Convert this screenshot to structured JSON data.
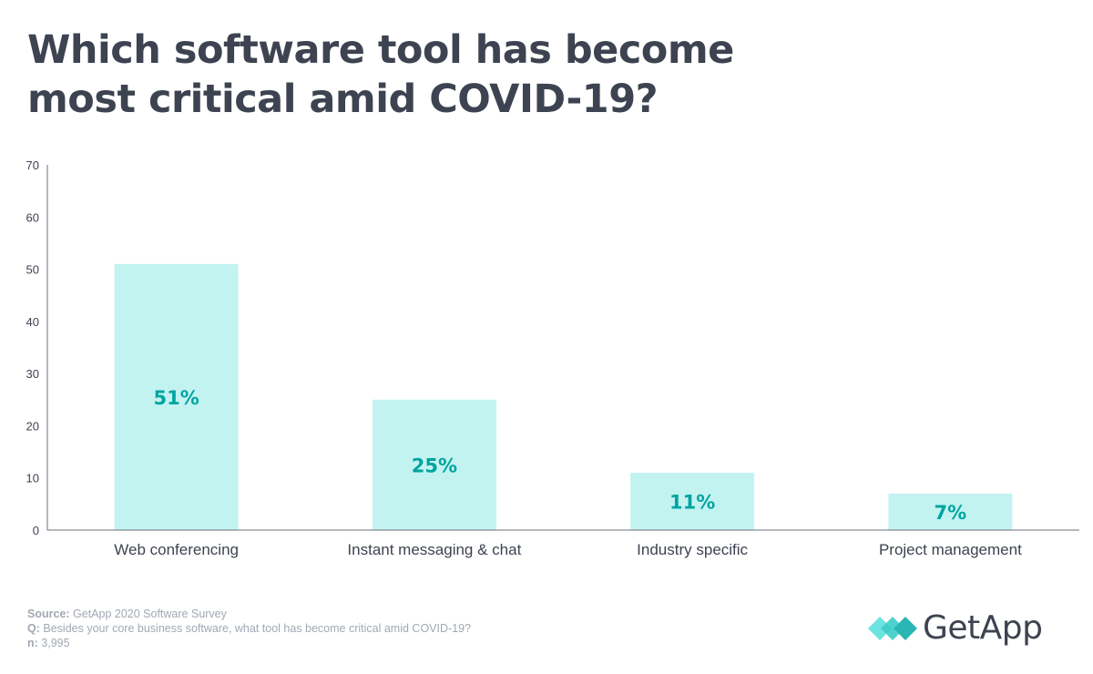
{
  "title_lines": [
    "Which software tool has become",
    "most critical amid COVID-19?"
  ],
  "chart_data": {
    "type": "bar",
    "categories": [
      "Web conferencing",
      "Instant messaging & chat",
      "Industry specific",
      "Project management"
    ],
    "values": [
      51,
      25,
      11,
      7
    ],
    "data_labels": [
      "51%",
      "25%",
      "11%",
      "7%"
    ],
    "ylim": [
      0,
      70
    ],
    "yticks": [
      0,
      10,
      20,
      30,
      40,
      50,
      60,
      70
    ],
    "xlabel": "",
    "ylabel": "",
    "grid": false,
    "bar_color": "#c3f3f1",
    "label_color": "#00a4a0"
  },
  "footer": {
    "source_label": "Source:",
    "source_text": "GetApp 2020 Software Survey",
    "q_label": "Q:",
    "q_text": "Besides your core business software, what tool has become critical amid COVID-19?",
    "n_label": "n:",
    "n_text": "3,995"
  },
  "logo": {
    "text": "GetApp",
    "colors": [
      "#5ce0dc",
      "#2ab7b3"
    ]
  }
}
